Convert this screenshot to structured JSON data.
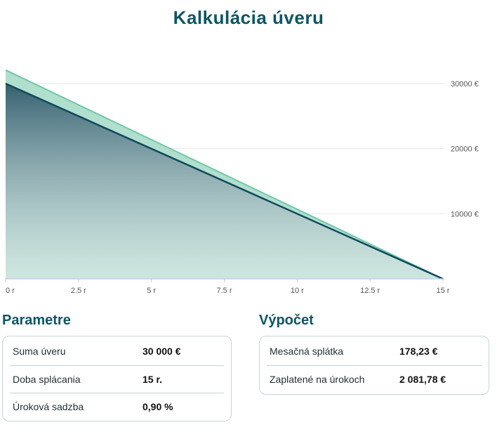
{
  "page": {
    "title": "Kalkulácia úveru"
  },
  "chart_data": {
    "type": "area",
    "x_tick_labels": [
      "0 r",
      "2.5 r",
      "5 r",
      "7.5 r",
      "10 r",
      "12.5 r",
      "15 r"
    ],
    "x_ticks": [
      0,
      2.5,
      5,
      7.5,
      10,
      12.5,
      15
    ],
    "y_tick_labels": [
      "30000 €",
      "20000 €",
      "10000 €"
    ],
    "y_ticks": [
      30000,
      20000,
      10000
    ],
    "xlim": [
      0,
      15
    ],
    "ylim": [
      0,
      32100
    ],
    "grid": true,
    "series": [
      {
        "x": [
          0,
          15
        ],
        "values": [
          32082,
          0
        ],
        "color": "#6fc7a8"
      },
      {
        "x": [
          0,
          15
        ],
        "values": [
          30000,
          0
        ],
        "color": "#0f4a5c"
      }
    ]
  },
  "parametre": {
    "title": "Parametre",
    "rows": [
      {
        "label": "Suma úveru",
        "value": "30 000 €"
      },
      {
        "label": "Doba splácania",
        "value": "15 r."
      },
      {
        "label": "Úroková sadzba",
        "value": "0,90 %"
      }
    ]
  },
  "vypocet": {
    "title": "Výpočet",
    "rows": [
      {
        "label": "Mesačná splátka",
        "value": "178,23 €"
      },
      {
        "label": "Zaplatené na úrokoch",
        "value": "2 081,78 €"
      }
    ]
  }
}
